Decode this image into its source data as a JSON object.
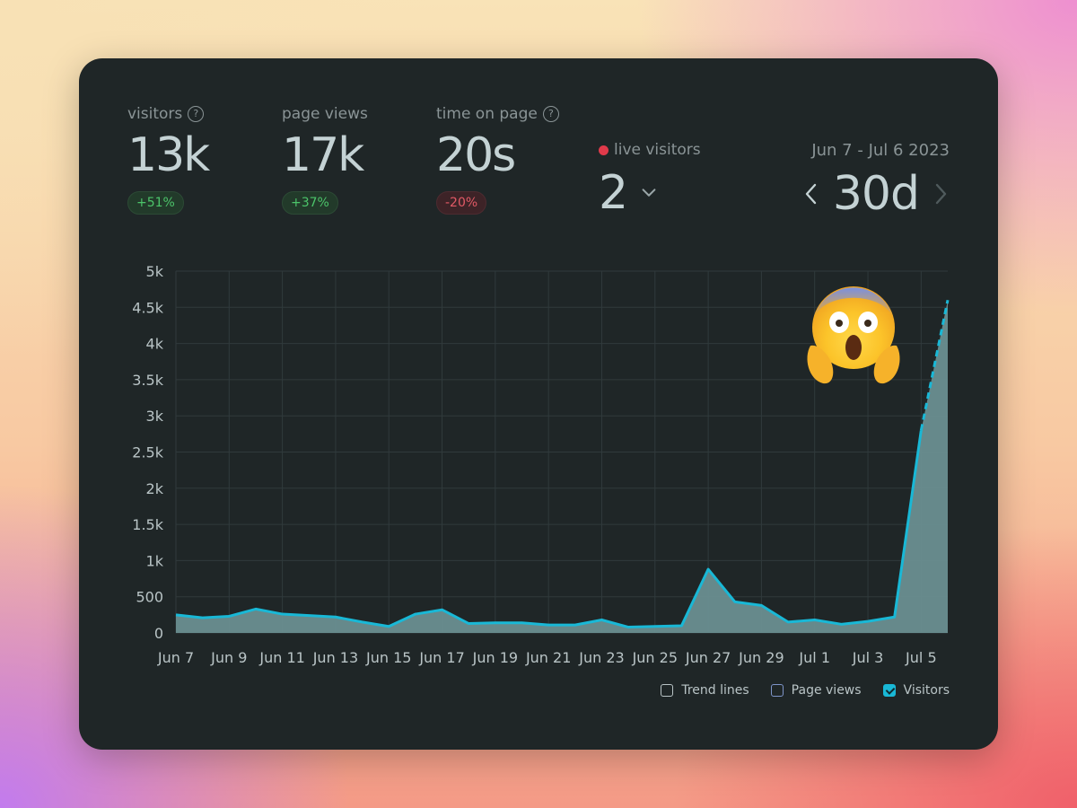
{
  "metrics": {
    "visitors": {
      "label": "visitors",
      "value": "13k",
      "change": "+51%"
    },
    "page_views": {
      "label": "page views",
      "value": "17k",
      "change": "+37%"
    },
    "time_on_page": {
      "label": "time on page",
      "value": "20s",
      "change": "-20%"
    }
  },
  "live": {
    "label": "live visitors",
    "value": "2"
  },
  "range": {
    "dates": "Jun 7 - Jul 6 2023",
    "period": "30d"
  },
  "icons": {
    "help": "question-circle-icon",
    "live": "red-dot-icon",
    "dropdown": "chevron-down-icon",
    "prev": "chevron-left-icon",
    "next": "chevron-right-icon",
    "emoji": "screaming-in-fear-emoji"
  },
  "legend": [
    {
      "label": "Trend lines",
      "checked": false
    },
    {
      "label": "Page views",
      "checked": false
    },
    {
      "label": "Visitors",
      "checked": true
    }
  ],
  "chart_data": {
    "type": "area",
    "title": "",
    "xlabel": "",
    "ylabel": "",
    "ylim": [
      0,
      5000
    ],
    "yticks": [
      "0",
      "500",
      "1k",
      "1.5k",
      "2k",
      "2.5k",
      "3k",
      "3.5k",
      "4k",
      "4.5k",
      "5k"
    ],
    "x": [
      "Jun 7",
      "Jun 8",
      "Jun 9",
      "Jun 10",
      "Jun 11",
      "Jun 12",
      "Jun 13",
      "Jun 14",
      "Jun 15",
      "Jun 16",
      "Jun 17",
      "Jun 18",
      "Jun 19",
      "Jun 20",
      "Jun 21",
      "Jun 22",
      "Jun 23",
      "Jun 24",
      "Jun 25",
      "Jun 26",
      "Jun 27",
      "Jun 28",
      "Jun 29",
      "Jun 30",
      "Jul 1",
      "Jul 2",
      "Jul 3",
      "Jul 4",
      "Jul 5",
      "Jul 6"
    ],
    "xtick_labels": [
      "Jun 7",
      "Jun 9",
      "Jun 11",
      "Jun 13",
      "Jun 15",
      "Jun 17",
      "Jun 19",
      "Jun 21",
      "Jun 23",
      "Jun 25",
      "Jun 27",
      "Jun 29",
      "Jul 1",
      "Jul 3",
      "Jul 5"
    ],
    "series": [
      {
        "values": [
          250,
          210,
          230,
          330,
          260,
          240,
          220,
          150,
          90,
          260,
          320,
          130,
          140,
          140,
          110,
          110,
          180,
          80,
          90,
          100,
          880,
          430,
          380,
          150,
          180,
          120,
          160,
          220,
          2800,
          4600
        ]
      }
    ],
    "grid": true,
    "color": "#19b8d6",
    "fill": "#6a8e90"
  }
}
